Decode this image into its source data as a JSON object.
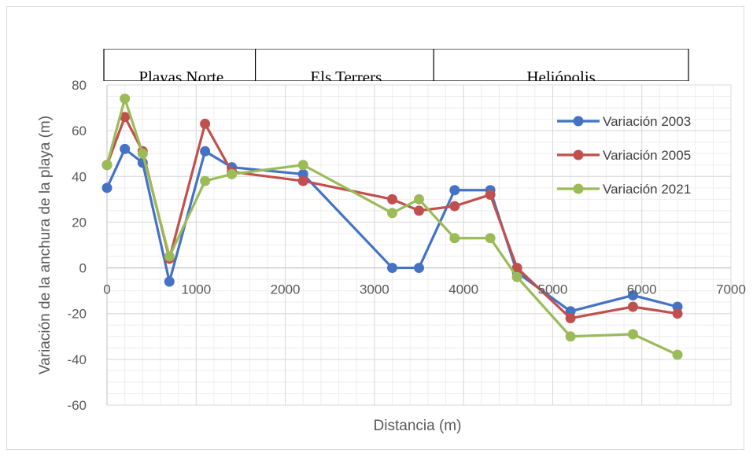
{
  "chart_data": {
    "type": "line",
    "title": "",
    "xlabel": "Distancia (m)",
    "ylabel": "Variación de la anchura de la playa (m)",
    "xlim": [
      0,
      7000
    ],
    "ylim": [
      -60,
      80
    ],
    "x_ticks": [
      0,
      1000,
      2000,
      3000,
      4000,
      5000,
      6000,
      7000
    ],
    "x_tick_labels": [
      "0",
      "1000",
      "2000",
      "3000",
      "4000",
      "5000",
      "6000",
      "7000"
    ],
    "y_ticks": [
      80,
      60,
      40,
      20,
      0,
      -20,
      -40,
      -60
    ],
    "y_tick_labels": [
      "80",
      "60",
      "40",
      "20",
      "0",
      "-20",
      "-40",
      "-60"
    ],
    "grid": true,
    "legend_position": "right",
    "zones": [
      {
        "label": "Playas Norte",
        "x_start": 0,
        "x_end": 1700
      },
      {
        "label": "Els Terrers",
        "x_start": 1700,
        "x_end": 3700
      },
      {
        "label": "Heliópolis",
        "x_start": 3700,
        "x_end": 6400
      }
    ],
    "series": [
      {
        "name": "Variación 2003",
        "color": "#4472c4",
        "x": [
          0,
          200,
          400,
          700,
          1100,
          1400,
          2200,
          3200,
          3500,
          3900,
          4300,
          4600,
          5200,
          5900,
          6400
        ],
        "y": [
          35,
          52,
          46,
          -6,
          51,
          44,
          41,
          0,
          0,
          34,
          34,
          -2,
          -19,
          -12,
          -17
        ]
      },
      {
        "name": "Variación 2005",
        "color": "#c0504d",
        "x": [
          0,
          200,
          400,
          700,
          1100,
          1400,
          2200,
          3200,
          3500,
          3900,
          4300,
          4600,
          5200,
          5900,
          6400
        ],
        "y": [
          45,
          66,
          51,
          4,
          63,
          42,
          38,
          30,
          25,
          27,
          32,
          0,
          -22,
          -17,
          -20
        ]
      },
      {
        "name": "Variación 2021",
        "color": "#9bbb59",
        "x": [
          0,
          200,
          400,
          700,
          1100,
          1400,
          2200,
          3200,
          3500,
          3900,
          4300,
          4600,
          5200,
          5900,
          6400
        ],
        "y": [
          45,
          74,
          50,
          5,
          38,
          41,
          45,
          24,
          30,
          13,
          13,
          -4,
          -30,
          -29,
          -38
        ]
      }
    ]
  }
}
